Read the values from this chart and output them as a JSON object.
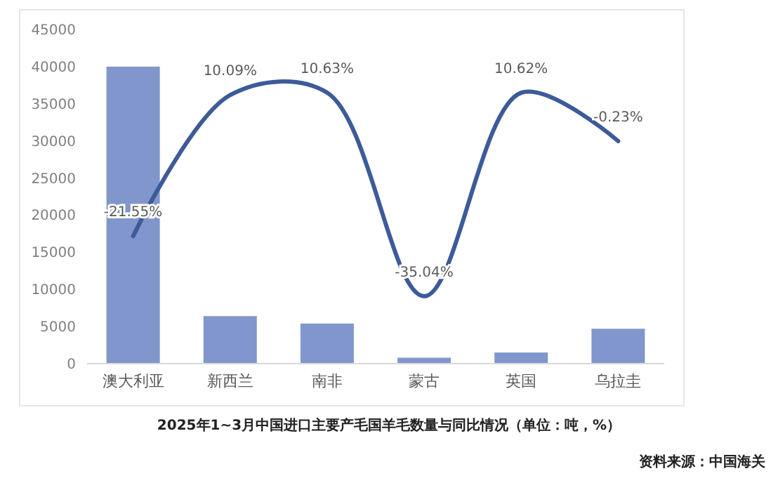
{
  "chart_data": {
    "type": "bar",
    "title": "2025年1~3月中国进口主要产毛国羊毛数量与同比情况（单位：吨，%）",
    "annotations": [
      "资料来源：中国海关"
    ],
    "categories": [
      "澳大利亚",
      "新西兰",
      "南非",
      "蒙古",
      "英国",
      "乌拉圭"
    ],
    "ylim": [
      0,
      45000
    ],
    "yticks": [
      0,
      5000,
      10000,
      15000,
      20000,
      25000,
      30000,
      35000,
      40000,
      45000
    ],
    "grid": false,
    "series": [
      {
        "color": "#8096cc",
        "values": [
          40000,
          6400,
          5400,
          800,
          1500,
          4700
        ]
      },
      {
        "type": "line",
        "axis": "y2",
        "color": "#3d5a99",
        "values": [
          -21.55,
          10.09,
          10.63,
          -35.04,
          10.62,
          -0.23
        ],
        "value_labels": [
          "-21.55%",
          "10.09%",
          "10.63%",
          "-35.04%",
          "10.62%",
          "-0.23%"
        ]
      }
    ]
  }
}
